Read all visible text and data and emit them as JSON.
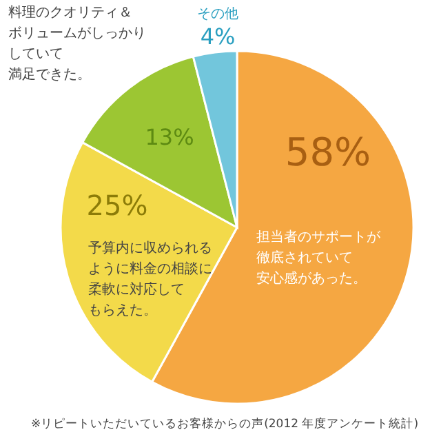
{
  "chart_data": {
    "type": "pie",
    "categories": [
      "担当者のサポートが徹底されていて安心感があった。",
      "予算内に収められるように料金の相談に柔軟に対応してもらえた。",
      "料理のクオリティ＆ボリュームがしっかりしていて満足できた。",
      "その他"
    ],
    "values": [
      58,
      25,
      13,
      4
    ],
    "value_labels": [
      "58%",
      "25%",
      "13%",
      "4%"
    ],
    "colors": [
      "#f5a742",
      "#f3da4a",
      "#9cc633",
      "#72c6dc"
    ],
    "annotations": [
      "※リピートいただいているお客様からの声(2012 年度アンケート統計)"
    ]
  }
}
